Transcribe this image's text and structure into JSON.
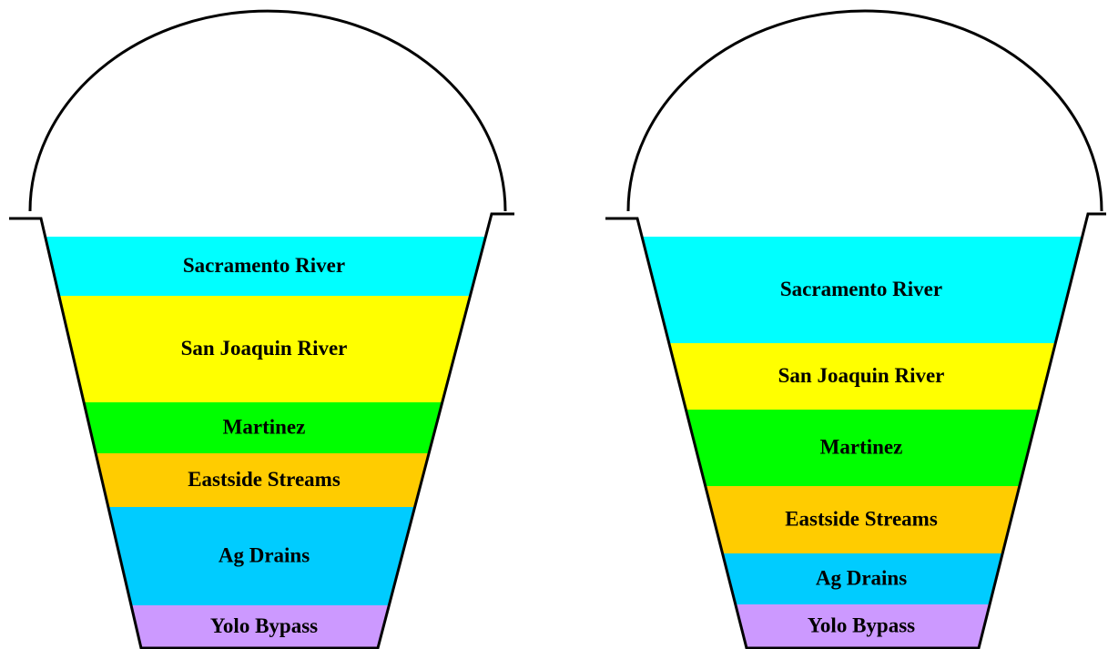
{
  "buckets": [
    {
      "layers": [
        "Sacramento River",
        "San Joaquin River",
        "Martinez",
        "Eastside Streams",
        "Ag Drains",
        "Yolo Bypass"
      ]
    },
    {
      "layers": [
        "Sacramento River",
        "San Joaquin River",
        "Martinez",
        "Eastside Streams",
        "Ag Drains",
        "Yolo Bypass"
      ]
    }
  ]
}
